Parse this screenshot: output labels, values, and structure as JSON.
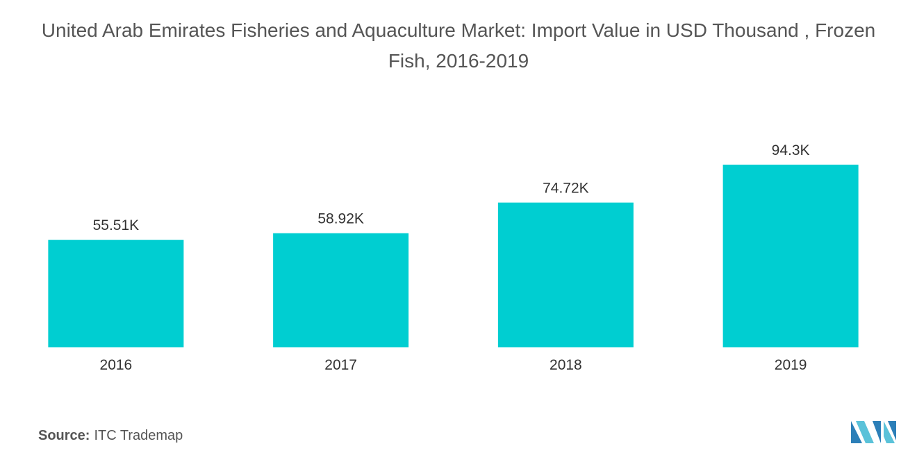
{
  "chart_data": {
    "type": "bar",
    "title": "United Arab Emirates Fisheries and Aquaculture Market: Import Value in USD Thousand , Frozen Fish, 2016-2019",
    "categories": [
      "2016",
      "2017",
      "2018",
      "2019"
    ],
    "values": [
      55.51,
      58.92,
      74.72,
      94.3
    ],
    "value_labels": [
      "55.51K",
      "58.92K",
      "74.72K",
      "94.3K"
    ],
    "color": "#00ced1",
    "source_label": "Source:",
    "source": "ITC Trademap"
  }
}
